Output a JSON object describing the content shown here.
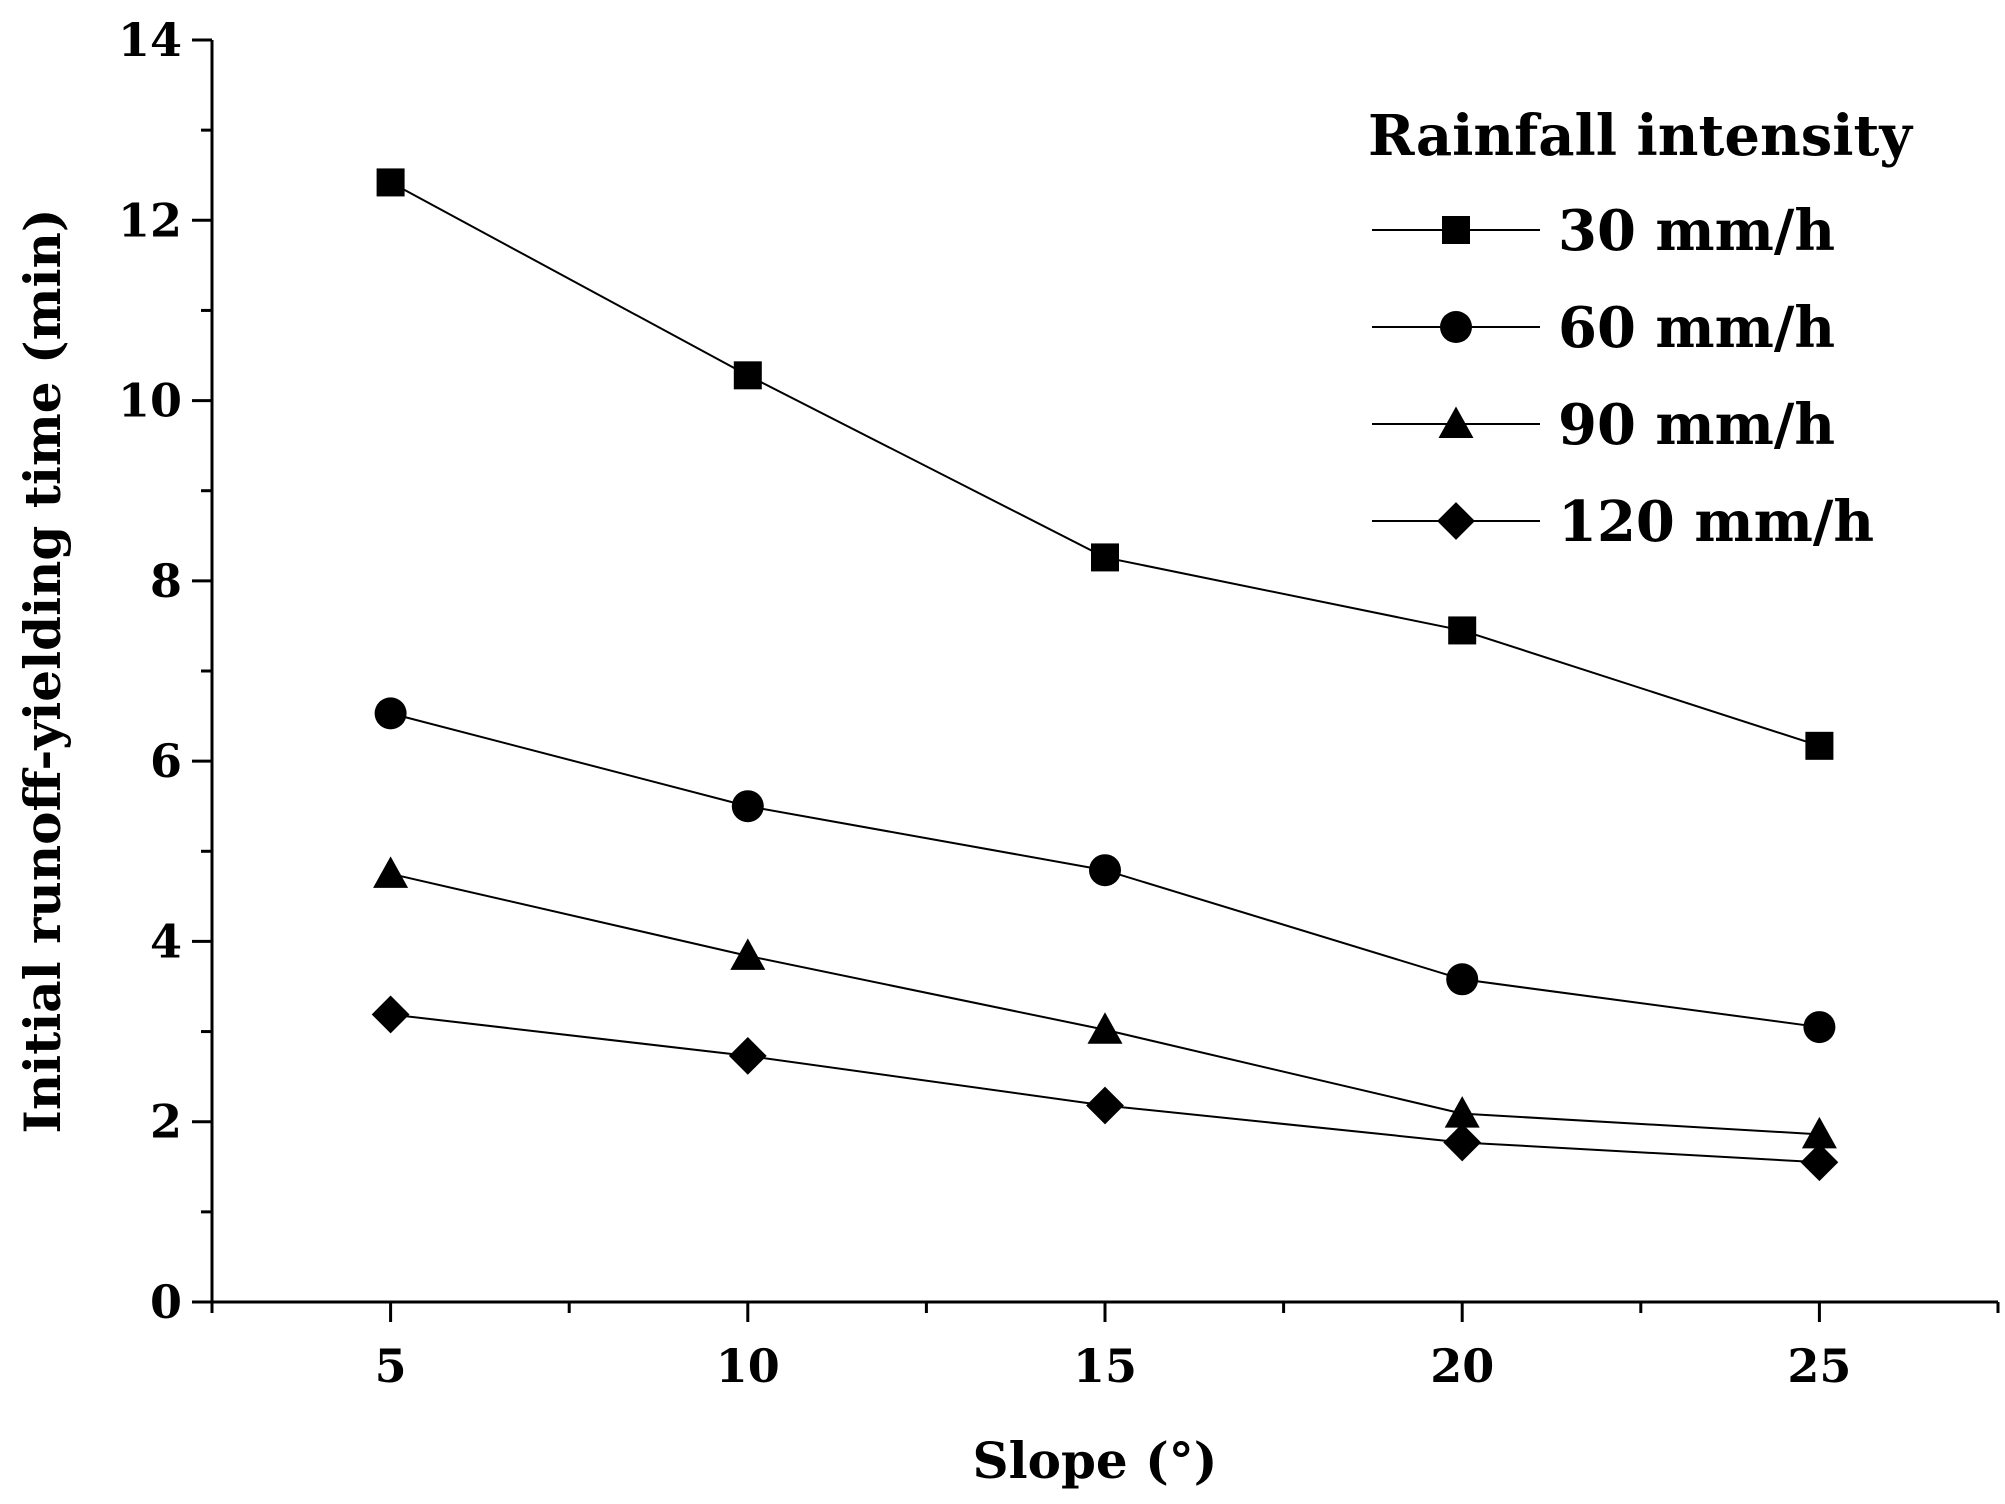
{
  "chart_data": {
    "type": "line",
    "title": "",
    "xlabel": "Slope (°)",
    "ylabel": "Initial runoff-yielding time (min)",
    "x": [
      5,
      10,
      15,
      20,
      25
    ],
    "xlim": [
      2.5,
      27.5
    ],
    "ylim": [
      0,
      14
    ],
    "x_ticks": [
      5,
      10,
      15,
      20,
      25
    ],
    "x_minor_ticks": [
      2.5,
      7.5,
      12.5,
      17.5,
      22.5,
      27.5
    ],
    "y_ticks": [
      0,
      2,
      4,
      6,
      8,
      10,
      12,
      14
    ],
    "y_minor_ticks": [
      1,
      3,
      5,
      7,
      9,
      11,
      13
    ],
    "x_tick_labels": [
      "5",
      "10",
      "15",
      "20",
      "25"
    ],
    "y_tick_labels": [
      "0",
      "2",
      "4",
      "6",
      "8",
      "10",
      "12",
      "14"
    ],
    "grid": false,
    "legend": {
      "title": "Rainfall intensity",
      "position": "top-right"
    },
    "series": [
      {
        "name": "30 mm/h",
        "marker": "square",
        "values": [
          12.42,
          10.28,
          8.26,
          7.45,
          6.17
        ]
      },
      {
        "name": "60 mm/h",
        "marker": "circle",
        "values": [
          6.53,
          5.5,
          4.79,
          3.58,
          3.05
        ]
      },
      {
        "name": "90 mm/h",
        "marker": "triangle",
        "values": [
          4.75,
          3.84,
          3.02,
          2.09,
          1.86
        ]
      },
      {
        "name": "120 mm/h",
        "marker": "diamond",
        "values": [
          3.19,
          2.73,
          2.18,
          1.77,
          1.55
        ]
      }
    ],
    "colors": {
      "line": "#000000",
      "marker": "#000000"
    }
  }
}
